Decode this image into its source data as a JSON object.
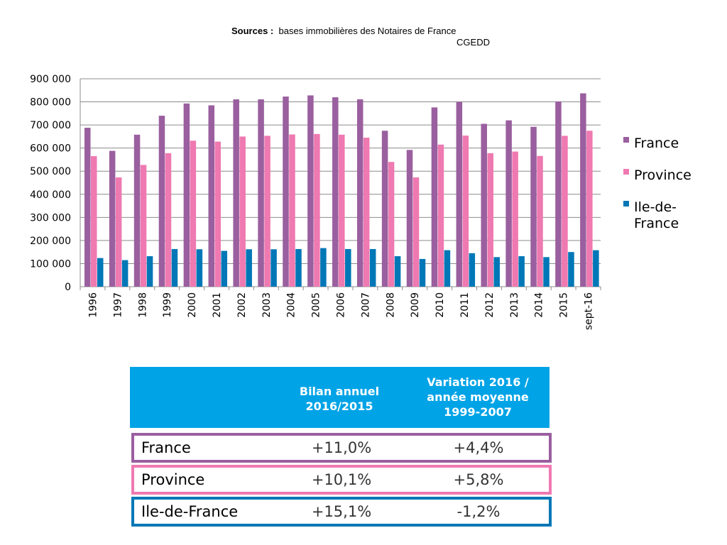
{
  "sources": {
    "label": "Sources :",
    "line1": "bases immobilières des Notaires de France",
    "line2": "CGEDD"
  },
  "colors": {
    "France": "#9a5f9f",
    "Province": "#ef79b1",
    "Ile-de-France": "#0077b6",
    "table_header": "#00a3e6"
  },
  "chart_data": {
    "type": "bar",
    "categories": [
      "1996",
      "1997",
      "1998",
      "1999",
      "2000",
      "2001",
      "2002",
      "2003",
      "2004",
      "2005",
      "2006",
      "2007",
      "2008",
      "2009",
      "2010",
      "2011",
      "2012",
      "2013",
      "2014",
      "2015",
      "sept-16"
    ],
    "series": [
      {
        "name": "France",
        "values": [
          688000,
          588000,
          658000,
          740000,
          793000,
          785000,
          811000,
          811000,
          823000,
          828000,
          820000,
          811000,
          675000,
          592000,
          776000,
          800000,
          705000,
          720000,
          692000,
          802000,
          837000
        ]
      },
      {
        "name": "Province",
        "values": [
          565000,
          473000,
          527000,
          578000,
          632000,
          628000,
          650000,
          653000,
          659000,
          661000,
          658000,
          645000,
          540000,
          473000,
          615000,
          654000,
          578000,
          585000,
          566000,
          653000,
          675000
        ]
      },
      {
        "name": "Ile-de-France",
        "values": [
          124000,
          115000,
          132000,
          163000,
          162000,
          155000,
          162000,
          162000,
          163000,
          167000,
          163000,
          163000,
          132000,
          120000,
          158000,
          145000,
          128000,
          132000,
          128000,
          150000,
          158000
        ]
      }
    ],
    "yticks": [
      "0",
      "100 000",
      "200 000",
      "300 000",
      "400 000",
      "500 000",
      "600 000",
      "700 000",
      "800 000",
      "900 000"
    ],
    "ylim": [
      0,
      900000
    ],
    "grid": true,
    "legend_position": "right",
    "legend": [
      {
        "lines": [
          "France"
        ]
      },
      {
        "lines": [
          "Province"
        ]
      },
      {
        "lines": [
          "Ile-de-",
          "France"
        ]
      }
    ]
  },
  "table": {
    "header": {
      "col1": [
        "Bilan annuel",
        "2016/2015"
      ],
      "col2": [
        "Variation 2016 /",
        "année moyenne",
        "1999-2007"
      ]
    },
    "rows": [
      {
        "name": "France",
        "bilan": "+11,0%",
        "variation": "+4,4%",
        "border": "#9a5f9f"
      },
      {
        "name": "Province",
        "bilan": "+10,1%",
        "variation": "+5,8%",
        "border": "#ef79b1"
      },
      {
        "name": "Ile-de-France",
        "bilan": "+15,1%",
        "variation": "-1,2%",
        "border": "#0077b6"
      }
    ]
  }
}
